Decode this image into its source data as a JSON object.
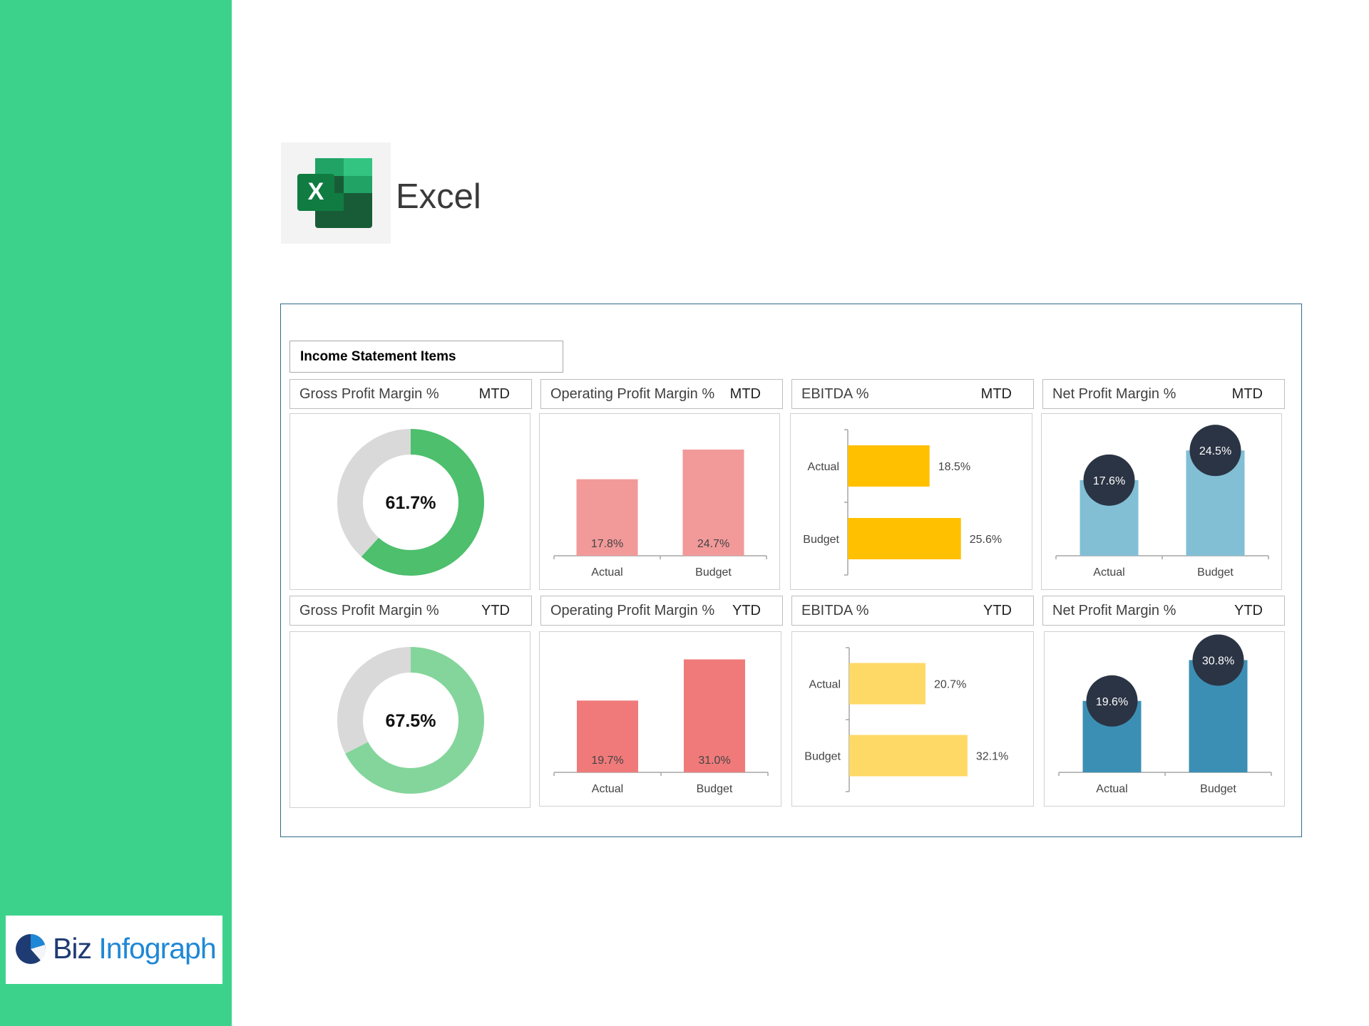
{
  "app": {
    "title": "Excel",
    "icon": "excel-icon"
  },
  "brand": {
    "part1": "Biz",
    "part2": "Infograph",
    "icon": "pie-logo-icon"
  },
  "section": {
    "title": "Income Statement Items"
  },
  "panels": [
    {
      "title": "Gross Profit Margin %",
      "period": "MTD"
    },
    {
      "title": "Operating Profit Margin %",
      "period": "MTD"
    },
    {
      "title": "EBITDA %",
      "period": "MTD"
    },
    {
      "title": "Net Profit Margin %",
      "period": "MTD"
    },
    {
      "title": "Gross Profit Margin %",
      "period": "YTD"
    },
    {
      "title": "Operating Profit Margin %",
      "period": "YTD"
    },
    {
      "title": "EBITDA %",
      "period": "YTD"
    },
    {
      "title": "Net Profit Margin %",
      "period": "YTD"
    }
  ],
  "chart_data": [
    {
      "type": "pie",
      "title": "Gross Profit Margin %",
      "period": "MTD",
      "slices": [
        {
          "label": "Margin",
          "value": 61.7
        },
        {
          "label": "Remainder",
          "value": 38.3
        }
      ],
      "center_label": "61.7%",
      "colors": [
        "#4dbf6d",
        "#d9d9d9"
      ]
    },
    {
      "type": "bar",
      "title": "Operating Profit Margin %",
      "period": "MTD",
      "categories": [
        "Actual",
        "Budget"
      ],
      "values": [
        17.8,
        24.7
      ],
      "labels": [
        "17.8%",
        "24.7%"
      ],
      "ylim": [
        0,
        30
      ],
      "color": "#f29999"
    },
    {
      "type": "bar",
      "orientation": "horizontal",
      "title": "EBITDA %",
      "period": "MTD",
      "categories": [
        "Actual",
        "Budget"
      ],
      "values": [
        18.5,
        25.6
      ],
      "labels": [
        "18.5%",
        "25.6%"
      ],
      "xlim": [
        0,
        30
      ],
      "color": "#ffc000"
    },
    {
      "type": "bar",
      "title": "Net Profit Margin %",
      "period": "MTD",
      "categories": [
        "Actual",
        "Budget"
      ],
      "values": [
        17.6,
        24.5
      ],
      "labels": [
        "17.6%",
        "24.5%"
      ],
      "ylim": [
        0,
        30
      ],
      "color": "#82bfd5",
      "marker_color": "#2b3444"
    },
    {
      "type": "pie",
      "title": "Gross Profit Margin %",
      "period": "YTD",
      "slices": [
        {
          "label": "Margin",
          "value": 67.5
        },
        {
          "label": "Remainder",
          "value": 32.5
        }
      ],
      "center_label": "67.5%",
      "colors": [
        "#84d59b",
        "#d9d9d9"
      ]
    },
    {
      "type": "bar",
      "title": "Operating Profit Margin %",
      "period": "YTD",
      "categories": [
        "Actual",
        "Budget"
      ],
      "values": [
        19.7,
        31.0
      ],
      "labels": [
        "19.7%",
        "31.0%"
      ],
      "ylim": [
        0,
        35
      ],
      "color": "#f07a7a"
    },
    {
      "type": "bar",
      "orientation": "horizontal",
      "title": "EBITDA %",
      "period": "YTD",
      "categories": [
        "Actual",
        "Budget"
      ],
      "values": [
        20.7,
        32.1
      ],
      "labels": [
        "20.7%",
        "32.1%"
      ],
      "xlim": [
        0,
        36
      ],
      "color": "#ffd966"
    },
    {
      "type": "bar",
      "title": "Net Profit Margin %",
      "period": "YTD",
      "categories": [
        "Actual",
        "Budget"
      ],
      "values": [
        19.6,
        30.8
      ],
      "labels": [
        "19.6%",
        "30.8%"
      ],
      "ylim": [
        0,
        35
      ],
      "color": "#3c8fb4",
      "marker_color": "#2b3444"
    }
  ]
}
